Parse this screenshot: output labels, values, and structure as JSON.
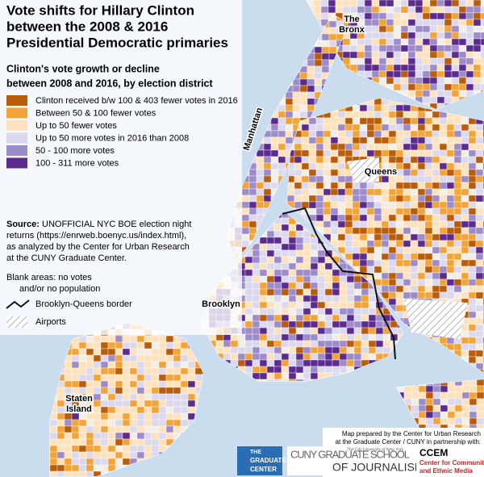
{
  "title": [
    "Vote shifts for Hillary Clinton",
    "between the 2008 & 2016",
    "Presidential Democratic primaries"
  ],
  "legend": {
    "title": [
      "Clinton's vote growth or decline",
      "between 2008 and 2016, by election district"
    ],
    "items": [
      {
        "label": "Clinton received b/w 100 & 403 fewer votes in 2016",
        "color": "#b85d0c"
      },
      {
        "label": "Between 50 & 100 fewer votes",
        "color": "#f0a43a"
      },
      {
        "label": "Up to 50 fewer votes",
        "color": "#fde2bd"
      },
      {
        "label": "Up to 50 more votes in 2016 than 2008",
        "color": "#dcd8ee"
      },
      {
        "label": "50 - 100 more votes",
        "color": "#9d8cca"
      },
      {
        "label": "100 - 311 more votes",
        "color": "#5b2b8d"
      }
    ]
  },
  "source": {
    "label": "Source:",
    "lines": [
      " UNOFFICIAL NYC BOE election night",
      "returns (https://enrweb.boenyc.us/index.html),",
      "as analyzed by the Center for Urban Research",
      "at the CUNY Graduate Center."
    ]
  },
  "notes": {
    "blank": [
      "Blank areas: no votes",
      "and/or no population"
    ],
    "border": "Brooklyn-Queens border",
    "airports": "Airports"
  },
  "places": {
    "bronx": [
      "The",
      "Bronx"
    ],
    "manhattan": "Manhattan",
    "queens": "Queens",
    "brooklyn": "Brooklyn",
    "staten_island": [
      "Staten",
      "Island"
    ]
  },
  "credit": [
    "Map prepared by the Center for Urban Research",
    "at the Graduate Center / CUNY in partnership with:"
  ],
  "logos": {
    "graduate_center": [
      "THE",
      "GRADUATE",
      "CENTER"
    ],
    "journalism": [
      "CUNY GRADUATE SCHOOL",
      "OF JOURNALISM"
    ],
    "journalism_small": "The City University of New York",
    "ccem": [
      "CCEM",
      "Center for Community",
      "and Ethnic Media"
    ]
  }
}
